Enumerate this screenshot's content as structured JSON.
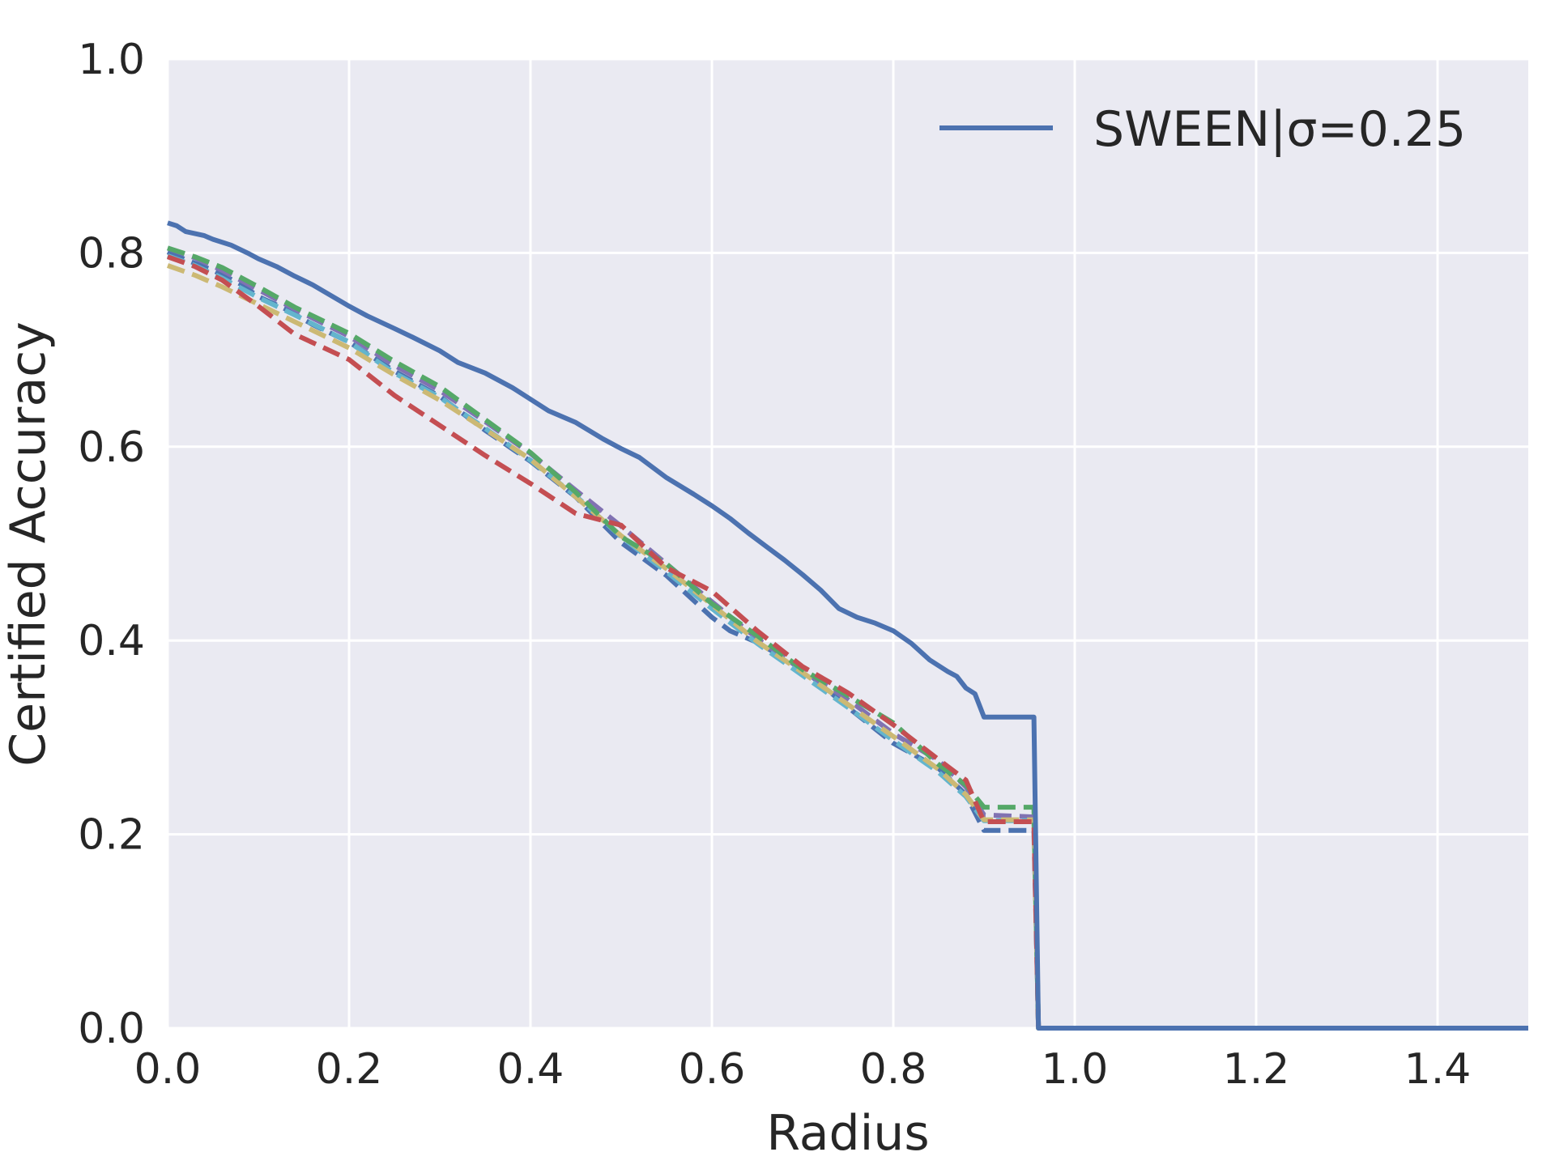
{
  "chart_data": {
    "type": "line",
    "title": "",
    "xlabel": "Radius",
    "ylabel": "Certified Accuracy",
    "xlim": [
      0,
      1.5
    ],
    "ylim": [
      0,
      1
    ],
    "xticks": [
      "0.0",
      "0.2",
      "0.4",
      "0.6",
      "0.8",
      "1.0",
      "1.2",
      "1.4"
    ],
    "yticks": [
      "0.0",
      "0.2",
      "0.4",
      "0.6",
      "0.8",
      "1.0"
    ],
    "grid": true,
    "legend": {
      "placement": "top-right",
      "entries": [
        "SWEEN|σ=0.25"
      ]
    },
    "series": [
      {
        "name": "SWEEN|σ=0.25",
        "color": "#4c72b0",
        "style": "solid",
        "x": [
          0,
          0.01,
          0.02,
          0.04,
          0.05,
          0.07,
          0.09,
          0.1,
          0.12,
          0.14,
          0.16,
          0.18,
          0.2,
          0.22,
          0.25,
          0.27,
          0.3,
          0.32,
          0.35,
          0.38,
          0.4,
          0.42,
          0.45,
          0.48,
          0.5,
          0.52,
          0.55,
          0.58,
          0.6,
          0.62,
          0.64,
          0.66,
          0.68,
          0.7,
          0.72,
          0.74,
          0.76,
          0.78,
          0.8,
          0.82,
          0.84,
          0.86,
          0.87,
          0.88,
          0.89,
          0.9,
          0.92,
          0.95,
          0.955,
          0.96,
          1.5
        ],
        "y": [
          0.831,
          0.828,
          0.822,
          0.818,
          0.814,
          0.808,
          0.799,
          0.794,
          0.786,
          0.776,
          0.767,
          0.756,
          0.745,
          0.735,
          0.722,
          0.713,
          0.699,
          0.687,
          0.676,
          0.661,
          0.649,
          0.637,
          0.625,
          0.608,
          0.598,
          0.589,
          0.568,
          0.551,
          0.539,
          0.526,
          0.511,
          0.497,
          0.483,
          0.468,
          0.452,
          0.433,
          0.424,
          0.418,
          0.41,
          0.397,
          0.38,
          0.368,
          0.363,
          0.351,
          0.345,
          0.321,
          0.321,
          0.321,
          0.321,
          0,
          0
        ]
      },
      {
        "name": "dashed-blue",
        "color": "#4c72b0",
        "style": "dashed",
        "x": [
          0,
          0.02,
          0.05,
          0.08,
          0.1,
          0.13,
          0.16,
          0.2,
          0.25,
          0.3,
          0.35,
          0.4,
          0.45,
          0.5,
          0.55,
          0.6,
          0.62,
          0.65,
          0.7,
          0.75,
          0.8,
          0.85,
          0.88,
          0.9,
          0.92,
          0.955,
          0.96,
          1.5
        ],
        "y": [
          0.801,
          0.793,
          0.782,
          0.768,
          0.755,
          0.742,
          0.726,
          0.708,
          0.678,
          0.652,
          0.617,
          0.585,
          0.548,
          0.501,
          0.467,
          0.424,
          0.41,
          0.398,
          0.371,
          0.331,
          0.294,
          0.268,
          0.241,
          0.204,
          0.204,
          0.204,
          0,
          0
        ]
      },
      {
        "name": "dashed-purple",
        "color": "#8172b2",
        "style": "dashed",
        "x": [
          0,
          0.03,
          0.06,
          0.1,
          0.14,
          0.2,
          0.25,
          0.3,
          0.35,
          0.4,
          0.45,
          0.5,
          0.55,
          0.6,
          0.65,
          0.7,
          0.75,
          0.8,
          0.85,
          0.88,
          0.9,
          0.955,
          0.96,
          1.5
        ],
        "y": [
          0.805,
          0.795,
          0.782,
          0.762,
          0.742,
          0.714,
          0.684,
          0.658,
          0.626,
          0.593,
          0.555,
          0.518,
          0.479,
          0.44,
          0.402,
          0.369,
          0.339,
          0.304,
          0.276,
          0.249,
          0.22,
          0.218,
          0,
          0
        ]
      },
      {
        "name": "dashed-cyan",
        "color": "#64b5cd",
        "style": "dashed",
        "x": [
          0,
          0.03,
          0.06,
          0.1,
          0.14,
          0.2,
          0.25,
          0.3,
          0.35,
          0.4,
          0.45,
          0.5,
          0.55,
          0.6,
          0.65,
          0.7,
          0.75,
          0.8,
          0.85,
          0.88,
          0.9,
          0.955,
          0.96,
          1.5
        ],
        "y": [
          0.797,
          0.787,
          0.774,
          0.754,
          0.736,
          0.708,
          0.676,
          0.651,
          0.619,
          0.586,
          0.549,
          0.507,
          0.471,
          0.433,
          0.397,
          0.364,
          0.331,
          0.297,
          0.264,
          0.239,
          0.214,
          0.214,
          0,
          0
        ]
      },
      {
        "name": "dashed-yellow",
        "color": "#ccb974",
        "style": "dashed",
        "x": [
          0,
          0.03,
          0.06,
          0.1,
          0.14,
          0.2,
          0.25,
          0.3,
          0.35,
          0.4,
          0.45,
          0.5,
          0.55,
          0.6,
          0.65,
          0.7,
          0.75,
          0.8,
          0.85,
          0.88,
          0.9,
          0.955,
          0.96,
          1.5
        ],
        "y": [
          0.787,
          0.777,
          0.765,
          0.747,
          0.729,
          0.702,
          0.674,
          0.648,
          0.618,
          0.587,
          0.548,
          0.508,
          0.474,
          0.437,
          0.399,
          0.367,
          0.334,
          0.301,
          0.267,
          0.241,
          0.215,
          0.215,
          0,
          0
        ]
      },
      {
        "name": "dashed-green",
        "color": "#55a868",
        "style": "dashed",
        "x": [
          0,
          0.03,
          0.06,
          0.1,
          0.14,
          0.2,
          0.25,
          0.3,
          0.35,
          0.4,
          0.45,
          0.5,
          0.55,
          0.6,
          0.65,
          0.7,
          0.75,
          0.8,
          0.85,
          0.88,
          0.9,
          0.955,
          0.96,
          1.5
        ],
        "y": [
          0.805,
          0.796,
          0.785,
          0.765,
          0.744,
          0.717,
          0.688,
          0.662,
          0.628,
          0.594,
          0.553,
          0.507,
          0.479,
          0.438,
          0.405,
          0.37,
          0.343,
          0.315,
          0.272,
          0.251,
          0.228,
          0.228,
          0,
          0
        ]
      },
      {
        "name": "dashed-red",
        "color": "#c44e52",
        "style": "dashed",
        "x": [
          0,
          0.03,
          0.06,
          0.1,
          0.14,
          0.2,
          0.25,
          0.3,
          0.35,
          0.4,
          0.45,
          0.5,
          0.55,
          0.6,
          0.65,
          0.7,
          0.75,
          0.8,
          0.85,
          0.88,
          0.9,
          0.955,
          0.96,
          1.5
        ],
        "y": [
          0.796,
          0.786,
          0.772,
          0.745,
          0.716,
          0.69,
          0.653,
          0.622,
          0.591,
          0.562,
          0.531,
          0.519,
          0.475,
          0.451,
          0.41,
          0.373,
          0.346,
          0.313,
          0.277,
          0.256,
          0.213,
          0.213,
          0,
          0
        ]
      }
    ]
  }
}
